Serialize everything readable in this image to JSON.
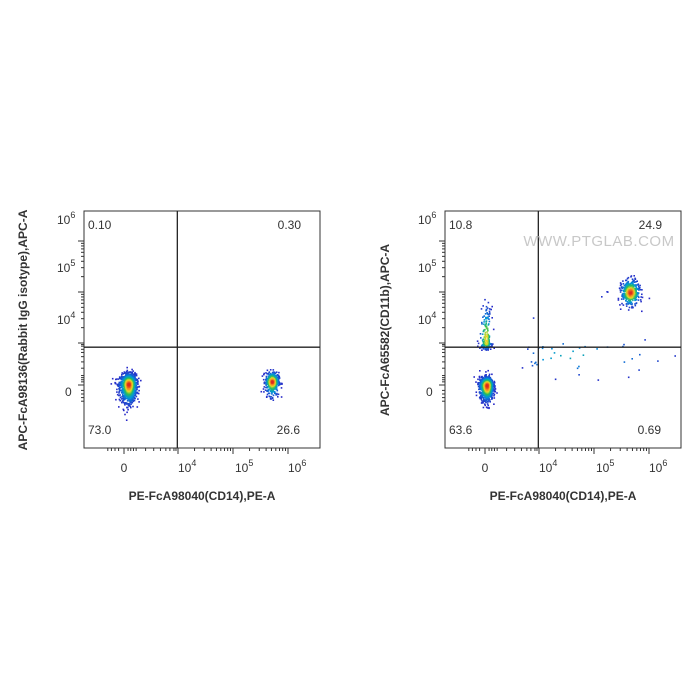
{
  "watermark": "WWW.PTGLAB.COM",
  "chart_data": [
    {
      "type": "scatter",
      "subtype": "flow-cytometry-density-dot-plot",
      "xlabel": "PE-FcA98040(CD14),PE-A",
      "ylabel": "APC-FcA98136(Rabbit IgG isotype),APC-A",
      "x_scale": "biexponential",
      "y_scale": "biexponential",
      "x_ticks": [
        {
          "value": 0,
          "label": "0"
        },
        {
          "value": 10000,
          "base": "10",
          "exp": "4"
        },
        {
          "value": 100000,
          "base": "10",
          "exp": "5"
        },
        {
          "value": 1000000,
          "base": "10",
          "exp": "6"
        }
      ],
      "y_ticks": [
        {
          "value": 0,
          "label": "0"
        },
        {
          "value": 10000,
          "base": "10",
          "exp": "4"
        },
        {
          "value": 100000,
          "base": "10",
          "exp": "5"
        },
        {
          "value": 1000000,
          "base": "10",
          "exp": "6"
        }
      ],
      "quadrants": {
        "upper_left": "0.10",
        "upper_right": "0.30",
        "lower_left": "73.0",
        "lower_right": "26.6"
      },
      "gate_x_decade": 3.95,
      "gate_y_decade": 3.6,
      "populations": [
        {
          "x_decade": 0.3,
          "y_decade": 0.1,
          "spread_x": 0.28,
          "spread_y": 0.5,
          "percent": 73.0
        },
        {
          "x_decade": 5.7,
          "y_decade": 0.35,
          "spread_x": 0.06,
          "spread_y": 0.45,
          "percent": 26.6
        }
      ]
    },
    {
      "type": "scatter",
      "subtype": "flow-cytometry-density-dot-plot",
      "xlabel": "PE-FcA98040(CD14),PE-A",
      "ylabel": "APC-FcA65582(CD11b),APC-A",
      "x_scale": "biexponential",
      "y_scale": "biexponential",
      "x_ticks": [
        {
          "value": 0,
          "label": "0"
        },
        {
          "value": 10000,
          "base": "10",
          "exp": "4"
        },
        {
          "value": 100000,
          "base": "10",
          "exp": "5"
        },
        {
          "value": 1000000,
          "base": "10",
          "exp": "6"
        }
      ],
      "y_ticks": [
        {
          "value": 0,
          "label": "0"
        },
        {
          "value": 10000,
          "base": "10",
          "exp": "4"
        },
        {
          "value": 100000,
          "base": "10",
          "exp": "5"
        },
        {
          "value": 1000000,
          "base": "10",
          "exp": "6"
        }
      ],
      "quadrants": {
        "upper_left": "10.8",
        "upper_right": "24.9",
        "lower_left": "63.6",
        "lower_right": "0.69"
      },
      "gate_x_decade": 3.95,
      "gate_y_decade": 3.6,
      "populations": [
        {
          "x_decade": 0.1,
          "y_decade": 0.0,
          "spread_x": 0.22,
          "spread_y": 0.4,
          "percent": 63.6
        },
        {
          "x_decade": 0.05,
          "y_decade": 4.1,
          "spread_x": 0.18,
          "spread_y": 0.3,
          "percent": 10.8
        },
        {
          "x_decade": 5.65,
          "y_decade": 5.0,
          "spread_x": 0.08,
          "spread_y": 0.12,
          "percent": 24.9
        },
        {
          "x_decade": 4.6,
          "y_decade": 2.8,
          "spread_x": 0.9,
          "spread_y": 1.0,
          "percent": 0.69
        }
      ]
    }
  ]
}
